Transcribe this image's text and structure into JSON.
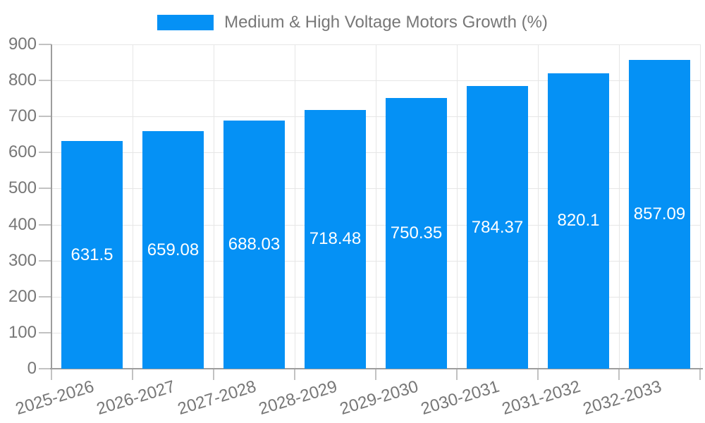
{
  "chart_data": {
    "type": "bar",
    "title": "Medium & High Voltage Motors Growth (%)",
    "legend_position": "top",
    "categories": [
      "2025-2026",
      "2026-2027",
      "2027-2028",
      "2028-2029",
      "2029-2030",
      "2030-2031",
      "2031-2032",
      "2032-2033"
    ],
    "values": [
      631.5,
      659.08,
      688.03,
      718.48,
      750.35,
      784.37,
      820.1,
      857.09
    ],
    "value_labels": [
      "631.5",
      "659.08",
      "688.03",
      "718.48",
      "750.35",
      "784.37",
      "820.1",
      "857.09"
    ],
    "xlabel": "",
    "ylabel": "",
    "ylim": [
      0,
      900
    ],
    "yticks": [
      0,
      100,
      200,
      300,
      400,
      500,
      600,
      700,
      800,
      900
    ],
    "grid": true,
    "colors": {
      "bar": "#0591F5",
      "axis_text": "#777777",
      "axis_line": "#9d9d9d",
      "tick": "#c2c2c2",
      "gridline": "#e6e6e6",
      "value_label": "#ffffff",
      "background": "#ffffff"
    }
  }
}
